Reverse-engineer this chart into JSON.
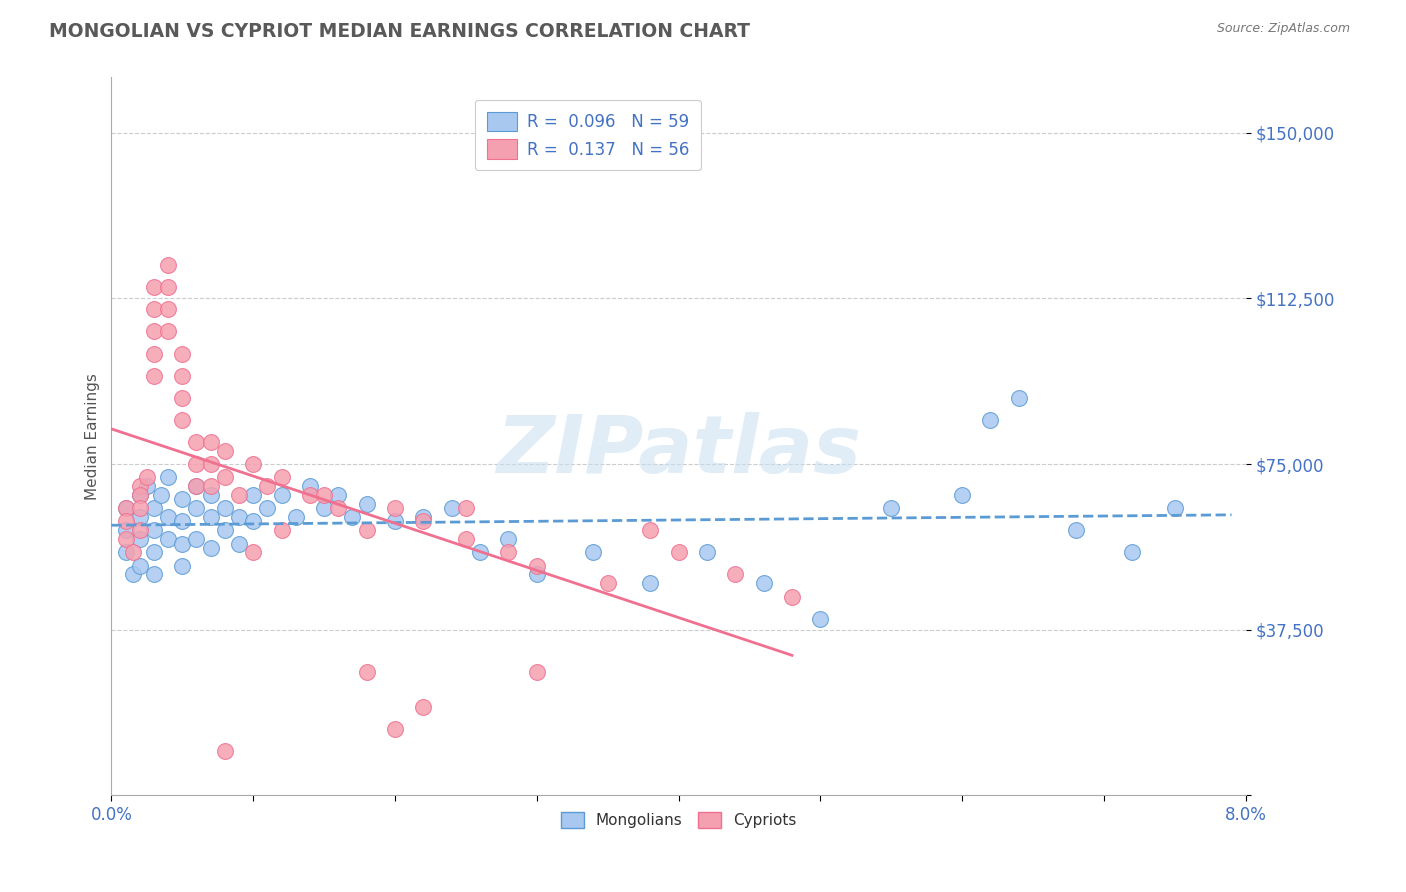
{
  "title": "MONGOLIAN VS CYPRIOT MEDIAN EARNINGS CORRELATION CHART",
  "source": "Source: ZipAtlas.com",
  "ylabel": "Median Earnings",
  "xlim": [
    0.0,
    0.08
  ],
  "ylim": [
    0,
    162500
  ],
  "xticks": [
    0.0,
    0.01,
    0.02,
    0.03,
    0.04,
    0.05,
    0.06,
    0.07,
    0.08
  ],
  "xticklabels": [
    "0.0%",
    "",
    "",
    "",
    "",
    "",
    "",
    "",
    "8.0%"
  ],
  "ytick_positions": [
    0,
    37500,
    75000,
    112500,
    150000
  ],
  "ytick_labels": [
    "",
    "$37,500",
    "$75,000",
    "$112,500",
    "$150,000"
  ],
  "mongolian_color": "#a8c8f0",
  "cypriot_color": "#f5a0b0",
  "mongolian_line_color": "#5b9bd5",
  "cypriot_line_color": "#f07090",
  "legend_R_mongolian": "0.096",
  "legend_N_mongolian": "59",
  "legend_R_cypriot": "0.137",
  "legend_N_cypriot": "56",
  "watermark": "ZIPatlas",
  "background_color": "#ffffff",
  "grid_color": "#cccccc",
  "title_color": "#595959",
  "axis_label_color": "#4472c4",
  "mongolian_x": [
    0.001,
    0.001,
    0.001,
    0.0015,
    0.002,
    0.002,
    0.002,
    0.002,
    0.0025,
    0.003,
    0.003,
    0.003,
    0.003,
    0.0035,
    0.004,
    0.004,
    0.004,
    0.005,
    0.005,
    0.005,
    0.005,
    0.006,
    0.006,
    0.006,
    0.007,
    0.007,
    0.007,
    0.008,
    0.008,
    0.009,
    0.009,
    0.01,
    0.01,
    0.011,
    0.012,
    0.013,
    0.014,
    0.015,
    0.016,
    0.017,
    0.018,
    0.02,
    0.022,
    0.024,
    0.026,
    0.028,
    0.03,
    0.034,
    0.038,
    0.042,
    0.046,
    0.05,
    0.055,
    0.06,
    0.062,
    0.064,
    0.068,
    0.072,
    0.075
  ],
  "mongolian_y": [
    65000,
    60000,
    55000,
    50000,
    68000,
    63000,
    58000,
    52000,
    70000,
    65000,
    60000,
    55000,
    50000,
    68000,
    63000,
    58000,
    72000,
    67000,
    62000,
    57000,
    52000,
    70000,
    65000,
    58000,
    68000,
    63000,
    56000,
    65000,
    60000,
    63000,
    57000,
    68000,
    62000,
    65000,
    68000,
    63000,
    70000,
    65000,
    68000,
    63000,
    66000,
    62000,
    63000,
    65000,
    55000,
    58000,
    50000,
    55000,
    48000,
    55000,
    48000,
    40000,
    65000,
    68000,
    85000,
    90000,
    60000,
    55000,
    65000
  ],
  "cypriot_x": [
    0.001,
    0.001,
    0.001,
    0.0015,
    0.002,
    0.002,
    0.002,
    0.002,
    0.0025,
    0.003,
    0.003,
    0.003,
    0.003,
    0.003,
    0.004,
    0.004,
    0.004,
    0.004,
    0.005,
    0.005,
    0.005,
    0.005,
    0.006,
    0.006,
    0.006,
    0.007,
    0.007,
    0.007,
    0.008,
    0.008,
    0.009,
    0.01,
    0.011,
    0.012,
    0.014,
    0.016,
    0.018,
    0.02,
    0.022,
    0.025,
    0.028,
    0.03,
    0.035,
    0.038,
    0.04,
    0.044,
    0.048,
    0.015,
    0.008,
    0.01,
    0.012,
    0.018,
    0.025,
    0.03,
    0.02,
    0.022
  ],
  "cypriot_y": [
    65000,
    62000,
    58000,
    55000,
    70000,
    68000,
    65000,
    60000,
    72000,
    115000,
    110000,
    105000,
    100000,
    95000,
    120000,
    115000,
    110000,
    105000,
    100000,
    95000,
    90000,
    85000,
    80000,
    75000,
    70000,
    80000,
    75000,
    70000,
    78000,
    72000,
    68000,
    75000,
    70000,
    72000,
    68000,
    65000,
    60000,
    65000,
    62000,
    58000,
    55000,
    52000,
    48000,
    60000,
    55000,
    50000,
    45000,
    68000,
    10000,
    55000,
    60000,
    28000,
    65000,
    28000,
    15000,
    20000
  ]
}
